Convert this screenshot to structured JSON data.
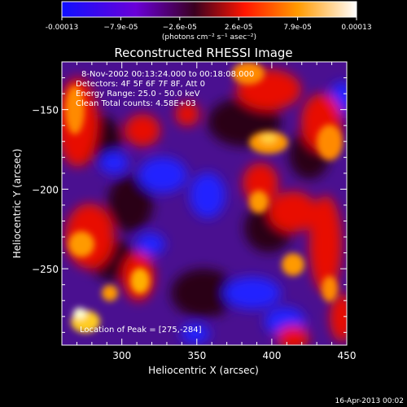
{
  "colorbar": {
    "ticks": [
      "-0.00013",
      "−7.9e-05",
      "−2.6e-05",
      "2.6e-05",
      "7.9e-05",
      "0.00013"
    ],
    "units": "(photons cm⁻² s⁻¹ asec⁻²)",
    "colors": [
      "#1a1aff",
      "#7a00c8",
      "#ff1a00",
      "#ff8800",
      "#ffffff"
    ]
  },
  "plot": {
    "title": "Reconstructed RHESSI Image",
    "info": [
      "8-Nov-2002 00:13:24.000 to 00:18:08.000",
      "Detectors: 4F 5F 6F 7F 8F, Att 0",
      "Energy Range: 25.0 - 50.0 keV",
      "Clean    Total counts: 4.58E+03"
    ],
    "peak_label": "Location of Peak = [275,-284]",
    "xlabel": "Heliocentric X (arcsec)",
    "ylabel": "Heliocentric Y (arcsec)",
    "xticks": [
      "300",
      "350",
      "400",
      "450"
    ],
    "yticks": [
      "-150",
      "-200",
      "-250"
    ],
    "xlim": [
      260,
      450
    ],
    "ylim": [
      -298,
      -120
    ]
  },
  "footer": {
    "timestamp": "16-Apr-2013 00:02"
  }
}
